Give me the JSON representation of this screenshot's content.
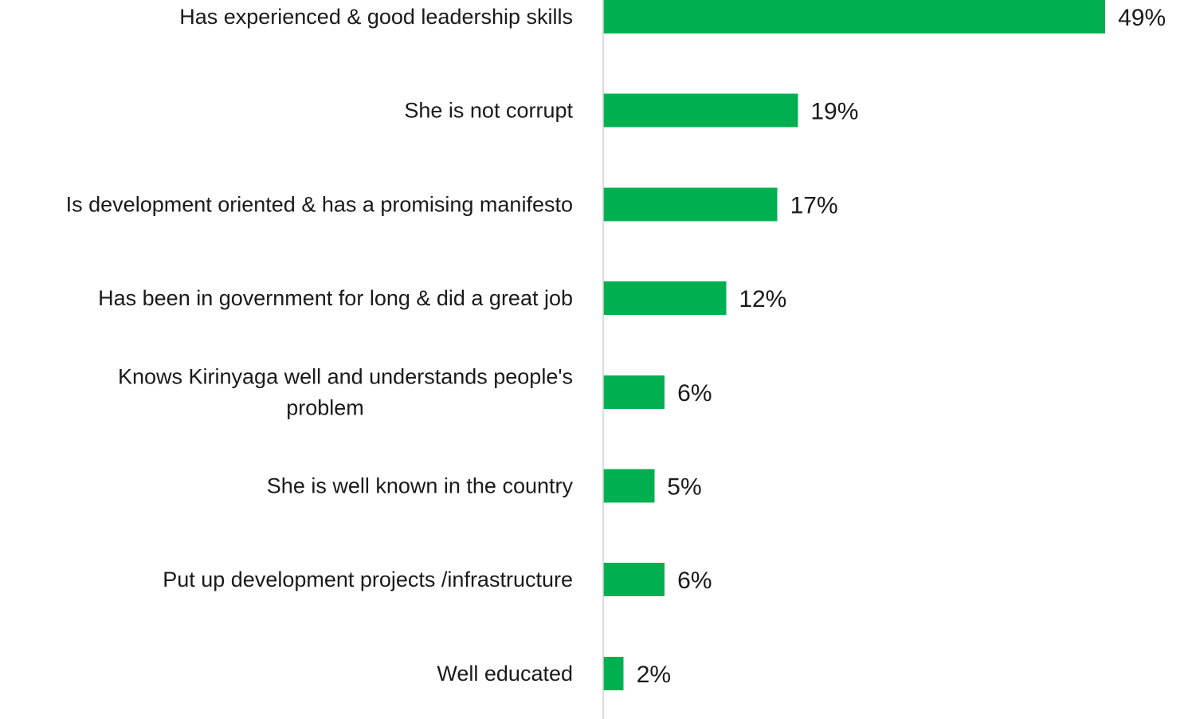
{
  "chart_data": {
    "type": "bar",
    "orientation": "horizontal",
    "categories": [
      [
        "Has experienced & good leadership skills"
      ],
      [
        "She is not corrupt"
      ],
      [
        "Is development oriented &  has a promising manifesto"
      ],
      [
        "Has been in government for long & did a great job"
      ],
      [
        "Knows Kirinyaga well and understands people's",
        "problem"
      ],
      [
        "She is well known in the country"
      ],
      [
        "Put up development  projects /infrastructure"
      ],
      [
        "Well educated"
      ]
    ],
    "values": [
      49,
      19,
      17,
      12,
      6,
      5,
      6,
      2
    ],
    "value_labels": [
      "49%",
      "19%",
      "17%",
      "12%",
      "6%",
      "5%",
      "6%",
      "2%"
    ],
    "unit": "%",
    "xlim": [
      0,
      50
    ],
    "bar_color": "#00b050",
    "grid": false,
    "legend": "none",
    "title": "",
    "xlabel": "",
    "ylabel": ""
  }
}
